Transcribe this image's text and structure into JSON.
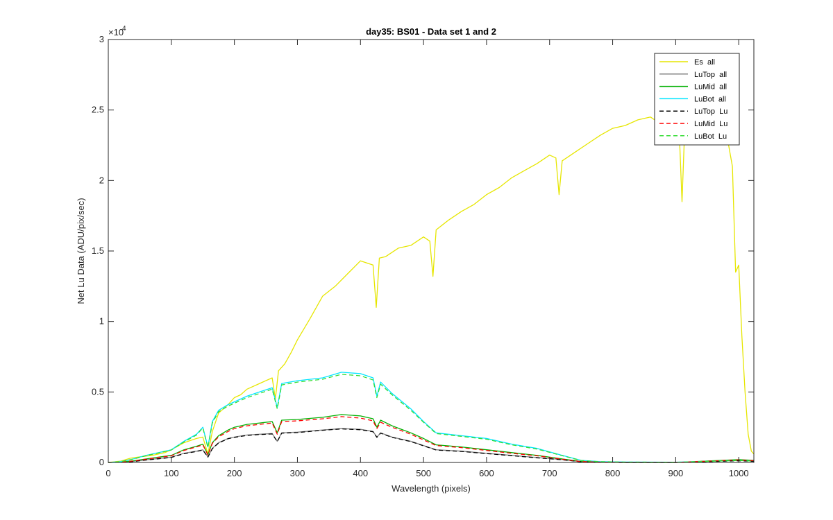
{
  "chart_data": {
    "type": "line",
    "title": "day35: BS01 - Data set 1 and 2",
    "xlabel": "Wavelength (pixels)",
    "ylabel": "Net Lu Data (ADU/pix/sec)",
    "exponent_label": "×10",
    "exponent_power": "4",
    "xlim": [
      0,
      1024
    ],
    "ylim": [
      0,
      30000
    ],
    "x_ticks": [
      0,
      100,
      200,
      300,
      400,
      500,
      600,
      700,
      800,
      900,
      1000
    ],
    "x_tick_labels": [
      "0",
      "100",
      "200",
      "300",
      "400",
      "500",
      "600",
      "700",
      "800",
      "900",
      "1000"
    ],
    "y_ticks": [
      0,
      5000,
      10000,
      15000,
      20000,
      25000,
      30000
    ],
    "y_tick_labels": [
      "0",
      "0.5",
      "1",
      "1.5",
      "2",
      "2.5",
      "3"
    ],
    "grid": false,
    "legend_position": "top-right",
    "series": [
      {
        "name": "Es  all",
        "color": "#e6e600",
        "dash": false,
        "x": [
          0,
          20,
          35,
          50,
          70,
          90,
          100,
          120,
          140,
          150,
          158,
          165,
          175,
          190,
          200,
          210,
          220,
          240,
          260,
          265,
          270,
          280,
          290,
          300,
          320,
          340,
          360,
          380,
          400,
          420,
          425,
          430,
          440,
          460,
          480,
          500,
          510,
          515,
          520,
          540,
          560,
          580,
          600,
          620,
          640,
          660,
          680,
          700,
          710,
          715,
          720,
          740,
          760,
          780,
          800,
          820,
          840,
          860,
          870,
          880,
          890,
          900,
          905,
          910,
          915,
          920,
          940,
          960,
          980,
          990,
          995,
          1000,
          1003,
          1005,
          1010,
          1015,
          1020,
          1024
        ],
        "y": [
          0,
          100,
          300,
          400,
          500,
          700,
          900,
          1400,
          1700,
          1800,
          600,
          2200,
          3500,
          4100,
          4600,
          4800,
          5200,
          5600,
          6000,
          4500,
          6500,
          7000,
          7800,
          8700,
          10200,
          11800,
          12500,
          13400,
          14300,
          14000,
          11000,
          14500,
          14600,
          15200,
          15400,
          16000,
          15700,
          13200,
          16500,
          17200,
          17800,
          18300,
          19000,
          19500,
          20200,
          20700,
          21200,
          21800,
          21600,
          19000,
          21400,
          22000,
          22600,
          23200,
          23700,
          23900,
          24300,
          24500,
          24200,
          24800,
          24600,
          24700,
          24200,
          18500,
          24500,
          24700,
          24800,
          24600,
          23500,
          21000,
          13500,
          14000,
          11000,
          9000,
          5000,
          2000,
          800,
          600
        ]
      },
      {
        "name": "LuTop  all",
        "color": "#808080",
        "dash": false,
        "x": [
          0,
          20,
          40,
          60,
          80,
          100,
          120,
          140,
          150,
          158,
          165,
          175,
          190,
          200,
          220,
          240,
          260,
          268,
          275,
          300,
          340,
          370,
          400,
          420,
          426,
          432,
          450,
          480,
          500,
          520,
          560,
          600,
          640,
          680,
          720,
          750,
          780,
          820,
          900,
          1000,
          1024
        ],
        "y": [
          0,
          20,
          80,
          180,
          280,
          380,
          650,
          800,
          900,
          400,
          1000,
          1400,
          1700,
          1800,
          1950,
          2000,
          2050,
          1500,
          2100,
          2150,
          2300,
          2400,
          2350,
          2200,
          1800,
          2100,
          1800,
          1500,
          1200,
          900,
          800,
          650,
          500,
          350,
          200,
          50,
          20,
          0,
          0,
          150,
          100
        ]
      },
      {
        "name": "LuMid  all",
        "color": "#00b000",
        "dash": false,
        "x": [
          0,
          20,
          40,
          60,
          80,
          100,
          120,
          140,
          150,
          158,
          165,
          175,
          190,
          200,
          220,
          240,
          260,
          268,
          275,
          300,
          340,
          370,
          400,
          420,
          426,
          432,
          450,
          480,
          500,
          520,
          560,
          600,
          640,
          680,
          720,
          750,
          780,
          820,
          900,
          1000,
          1024
        ],
        "y": [
          0,
          30,
          120,
          250,
          380,
          500,
          900,
          1150,
          1300,
          550,
          1400,
          1900,
          2300,
          2500,
          2700,
          2800,
          2900,
          2100,
          3000,
          3050,
          3200,
          3400,
          3300,
          3100,
          2500,
          3000,
          2600,
          2100,
          1700,
          1250,
          1100,
          900,
          700,
          500,
          250,
          70,
          30,
          0,
          0,
          200,
          150
        ]
      },
      {
        "name": "LuBot  all",
        "color": "#00e5ff",
        "dash": false,
        "x": [
          0,
          20,
          40,
          60,
          80,
          100,
          120,
          140,
          150,
          158,
          165,
          175,
          190,
          200,
          220,
          240,
          260,
          268,
          275,
          300,
          340,
          370,
          400,
          420,
          426,
          432,
          450,
          480,
          500,
          520,
          560,
          600,
          640,
          680,
          720,
          750,
          780,
          820,
          900,
          1000,
          1024
        ],
        "y": [
          0,
          60,
          250,
          500,
          700,
          900,
          1500,
          2000,
          2500,
          1100,
          2900,
          3700,
          4100,
          4300,
          4700,
          5000,
          5300,
          3900,
          5600,
          5800,
          6000,
          6400,
          6300,
          6000,
          4700,
          5700,
          4900,
          3800,
          2900,
          2100,
          1900,
          1700,
          1300,
          1000,
          500,
          150,
          60,
          30,
          20,
          150,
          100
        ]
      },
      {
        "name": "LuTop  Lu",
        "color": "#000000",
        "dash": true,
        "x": [
          0,
          20,
          40,
          60,
          80,
          100,
          120,
          140,
          150,
          158,
          165,
          175,
          190,
          200,
          220,
          240,
          260,
          268,
          275,
          300,
          340,
          370,
          400,
          420,
          426,
          432,
          450,
          480,
          500,
          520,
          560,
          600,
          640,
          680,
          720,
          750,
          780,
          820,
          900,
          1000,
          1024
        ],
        "y": [
          0,
          15,
          70,
          170,
          260,
          360,
          620,
          780,
          880,
          380,
          980,
          1380,
          1680,
          1780,
          1920,
          1980,
          2020,
          1480,
          2080,
          2120,
          2280,
          2380,
          2320,
          2180,
          1780,
          2080,
          1780,
          1480,
          1180,
          880,
          780,
          630,
          480,
          330,
          190,
          45,
          15,
          0,
          0,
          120,
          80
        ]
      },
      {
        "name": "LuMid  Lu",
        "color": "#ff0000",
        "dash": true,
        "x": [
          0,
          20,
          40,
          60,
          80,
          100,
          120,
          140,
          150,
          158,
          165,
          175,
          190,
          200,
          220,
          240,
          260,
          268,
          275,
          300,
          340,
          370,
          400,
          420,
          426,
          432,
          450,
          480,
          500,
          520,
          560,
          600,
          640,
          680,
          720,
          750,
          780,
          820,
          900,
          1000,
          1024
        ],
        "y": [
          0,
          25,
          110,
          230,
          360,
          470,
          850,
          1100,
          1250,
          520,
          1350,
          1820,
          2200,
          2400,
          2600,
          2700,
          2800,
          2000,
          2900,
          2950,
          3100,
          3250,
          3150,
          2950,
          2400,
          2850,
          2500,
          2000,
          1600,
          1200,
          1050,
          850,
          650,
          470,
          230,
          65,
          25,
          0,
          0,
          180,
          130
        ]
      },
      {
        "name": "LuBot  Lu",
        "color": "#33dd33",
        "dash": true,
        "x": [
          0,
          20,
          40,
          60,
          80,
          100,
          120,
          140,
          150,
          158,
          165,
          175,
          190,
          200,
          220,
          240,
          260,
          268,
          275,
          300,
          340,
          370,
          400,
          420,
          426,
          432,
          450,
          480,
          500,
          520,
          560,
          600,
          640,
          680,
          720,
          750,
          780,
          820,
          900,
          1000,
          1024
        ],
        "y": [
          0,
          55,
          240,
          480,
          680,
          880,
          1450,
          1950,
          2450,
          1050,
          2800,
          3600,
          4000,
          4200,
          4600,
          4900,
          5200,
          3800,
          5500,
          5700,
          5900,
          6250,
          6150,
          5850,
          4600,
          5550,
          4800,
          3700,
          2850,
          2050,
          1850,
          1650,
          1250,
          950,
          480,
          140,
          55,
          25,
          15,
          140,
          90
        ]
      }
    ]
  }
}
